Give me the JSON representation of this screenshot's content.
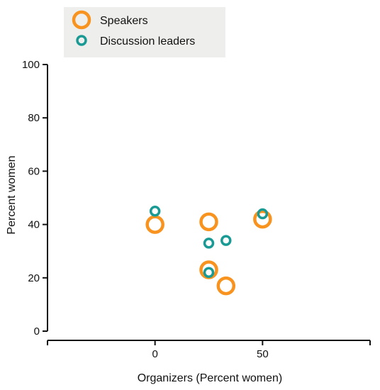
{
  "chart_data": {
    "type": "scatter",
    "xlabel": "Organizers (Percent women)",
    "ylabel": "Percent women",
    "xlim": [
      -50,
      100
    ],
    "ylim": [
      0,
      100
    ],
    "x_ticks": [
      0,
      50
    ],
    "y_ticks": [
      0,
      20,
      40,
      60,
      80,
      100
    ],
    "legend_position": "top-left",
    "series": [
      {
        "name": "Speakers",
        "color": "#f7931e",
        "marker": "large-open-circle",
        "points": [
          {
            "x": 0,
            "y": 40
          },
          {
            "x": 25,
            "y": 41
          },
          {
            "x": 25,
            "y": 23
          },
          {
            "x": 33,
            "y": 17
          },
          {
            "x": 50,
            "y": 42
          }
        ]
      },
      {
        "name": "Discussion leaders",
        "color": "#1a9a94",
        "marker": "small-open-circle",
        "points": [
          {
            "x": 0,
            "y": 45
          },
          {
            "x": 25,
            "y": 33
          },
          {
            "x": 33,
            "y": 34
          },
          {
            "x": 25,
            "y": 22
          },
          {
            "x": 50,
            "y": 44
          }
        ]
      }
    ]
  }
}
